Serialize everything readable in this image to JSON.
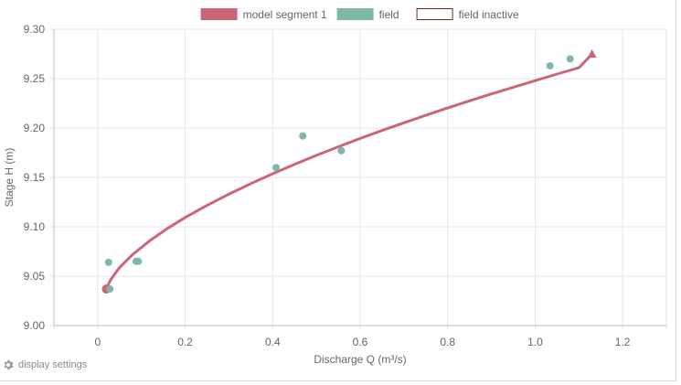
{
  "chart_data": {
    "type": "scatter",
    "xlabel": "Discharge Q (m³/s)",
    "ylabel": "Stage H (m)",
    "xlim": [
      -0.1,
      1.3
    ],
    "ylim": [
      9.0,
      9.3
    ],
    "x_ticks": [
      "0",
      "0.2",
      "0.4",
      "0.6",
      "0.8",
      "1.0",
      "1.2"
    ],
    "y_ticks": [
      "9.00",
      "9.05",
      "9.10",
      "9.15",
      "9.20",
      "9.25",
      "9.30"
    ],
    "grid": true,
    "legend_position": "top",
    "legend": [
      {
        "label": "model segment 1",
        "color": "#cc6677",
        "style": "filled"
      },
      {
        "label": "field",
        "color": "#7fb8a6",
        "style": "filled"
      },
      {
        "label": "field inactive",
        "color": "#6b2b1a",
        "style": "outline"
      }
    ],
    "series": [
      {
        "name": "model segment 1",
        "kind": "line",
        "color": "#cc6677",
        "x": [
          0.02,
          0.03,
          0.05,
          0.08,
          0.12,
          0.16,
          0.2,
          0.25,
          0.3,
          0.35,
          0.4,
          0.45,
          0.5,
          0.55,
          0.6,
          0.65,
          0.7,
          0.75,
          0.8,
          0.85,
          0.9,
          0.95,
          1.0,
          1.05,
          1.1,
          1.13
        ],
        "y": [
          9.037,
          9.0467,
          9.0588,
          9.0719,
          9.0862,
          9.0984,
          9.1094,
          9.1217,
          9.1331,
          9.1437,
          9.1537,
          9.1632,
          9.1723,
          9.181,
          9.1894,
          9.1975,
          9.2053,
          9.2129,
          9.2203,
          9.2275,
          9.2345,
          9.2413,
          9.248,
          9.2546,
          9.261,
          9.2747
        ],
        "start_point": {
          "x": 0.02,
          "y": 9.037
        },
        "end_point": {
          "x": 1.13,
          "y": 9.275
        }
      },
      {
        "name": "field",
        "kind": "points",
        "color": "#7fb8a6",
        "x": [
          0.025,
          0.028,
          0.088,
          0.093,
          0.408,
          0.469,
          0.557,
          1.034,
          1.08
        ],
        "y": [
          9.064,
          9.037,
          9.065,
          9.065,
          9.16,
          9.192,
          9.177,
          9.263,
          9.27
        ]
      }
    ]
  },
  "footer": {
    "settings_icon": "gear-icon",
    "settings_label": "display settings"
  }
}
